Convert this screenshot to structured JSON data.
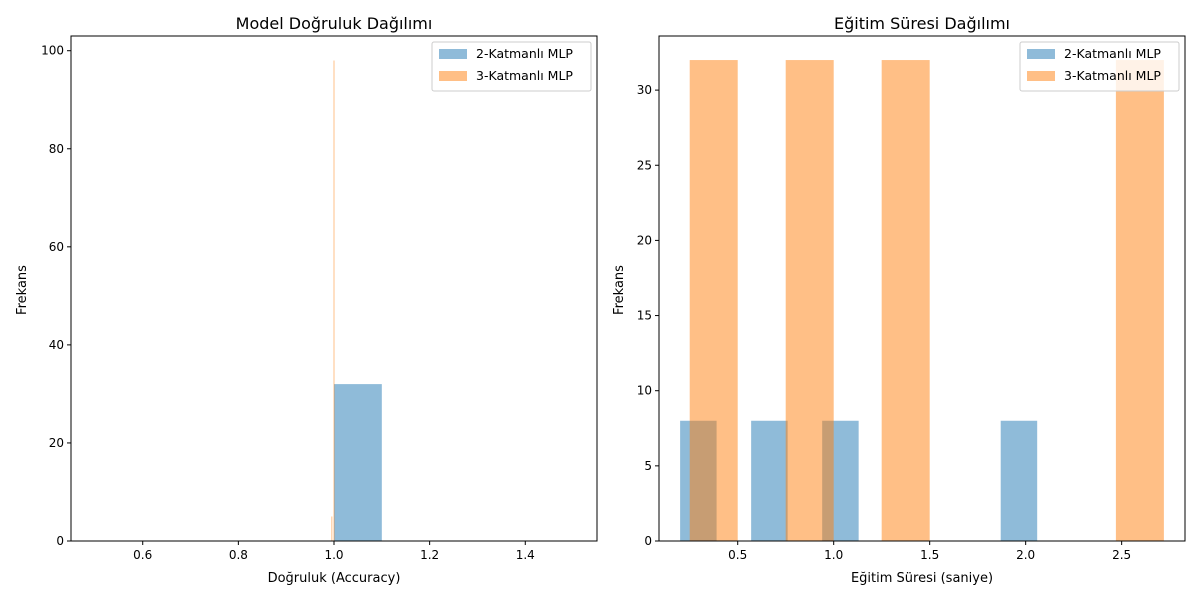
{
  "chart_data": [
    {
      "type": "histogram",
      "title": "Model Doğruluk Dağılımı",
      "xlabel": "Doğruluk (Accuracy)",
      "ylabel": "Frekans",
      "xlim": [
        0.45,
        1.55
      ],
      "ylim": [
        0,
        103
      ],
      "xticks": [
        0.6,
        0.8,
        1.0,
        1.2,
        1.4
      ],
      "xtick_labels": [
        "0.6",
        "0.8",
        "1.0",
        "1.2",
        "1.4"
      ],
      "yticks": [
        0,
        20,
        40,
        60,
        80,
        100
      ],
      "ytick_labels": [
        "0",
        "20",
        "40",
        "60",
        "80",
        "100"
      ],
      "grid": false,
      "legend_position": "top-right",
      "series": [
        {
          "name": "2-Katmanlı MLP",
          "color": "#1f77b4",
          "bins": [
            {
              "x0": 1.0,
              "x1": 1.1,
              "count": 32
            }
          ]
        },
        {
          "name": "3-Katmanlı MLP",
          "color": "#ff7f0e",
          "bins": [
            {
              "x0": 0.9945,
              "x1": 0.9965,
              "count": 5
            },
            {
              "x0": 0.999,
              "x1": 1.001,
              "count": 98
            }
          ]
        }
      ]
    },
    {
      "type": "histogram",
      "title": "Eğitim Süresi Dağılımı",
      "xlabel": "Eğitim Süresi (saniye)",
      "ylabel": "Frekans",
      "xlim": [
        0.09,
        2.83
      ],
      "ylim": [
        0,
        33.6
      ],
      "xticks": [
        0.5,
        1.0,
        1.5,
        2.0,
        2.5
      ],
      "xtick_labels": [
        "0.5",
        "1.0",
        "1.5",
        "2.0",
        "2.5"
      ],
      "yticks": [
        0,
        5,
        10,
        15,
        20,
        25,
        30
      ],
      "ytick_labels": [
        "0",
        "5",
        "10",
        "15",
        "20",
        "25",
        "30"
      ],
      "grid": false,
      "legend_position": "top-right",
      "series": [
        {
          "name": "2-Katmanlı MLP",
          "color": "#1f77b4",
          "bins": [
            {
              "x0": 0.2,
              "x1": 0.39,
              "count": 8
            },
            {
              "x0": 0.57,
              "x1": 0.76,
              "count": 8
            },
            {
              "x0": 0.94,
              "x1": 1.13,
              "count": 8
            },
            {
              "x0": 1.87,
              "x1": 2.06,
              "count": 8
            }
          ]
        },
        {
          "name": "3-Katmanlı MLP",
          "color": "#ff7f0e",
          "bins": [
            {
              "x0": 0.25,
              "x1": 0.5,
              "count": 32
            },
            {
              "x0": 0.75,
              "x1": 1.0,
              "count": 32
            },
            {
              "x0": 1.25,
              "x1": 1.5,
              "count": 32
            },
            {
              "x0": 2.47,
              "x1": 2.72,
              "count": 32
            }
          ]
        }
      ]
    }
  ]
}
